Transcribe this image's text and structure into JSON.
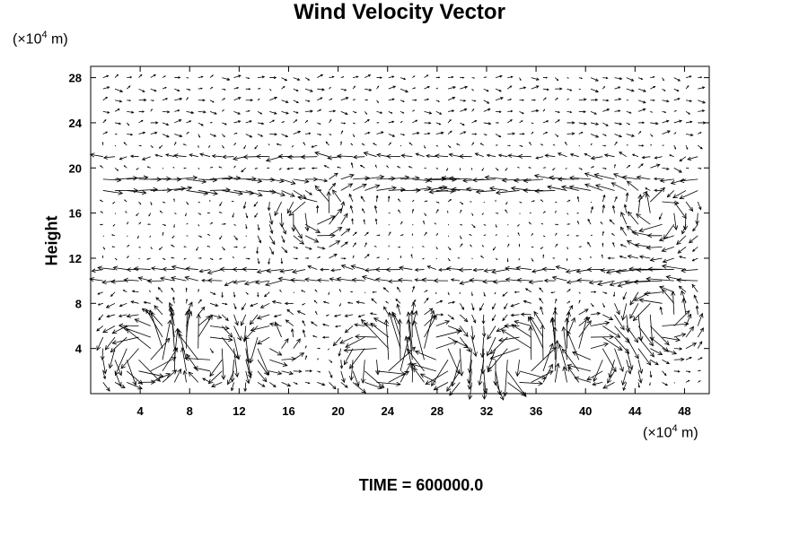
{
  "chart_data": {
    "type": "vector_field",
    "title": "Wind Velocity Vector",
    "ylabel": "Height",
    "y_unit_prefix": "(×10",
    "y_unit_exp": "4",
    "y_unit_suffix": " m)",
    "x_unit_prefix": "(×10",
    "x_unit_exp": "4",
    "x_unit_suffix": " m)",
    "xlim": [
      0,
      50
    ],
    "ylim": [
      0,
      29
    ],
    "xticks": [
      4,
      8,
      12,
      16,
      20,
      24,
      28,
      32,
      36,
      40,
      44,
      48
    ],
    "yticks": [
      4,
      8,
      12,
      16,
      20,
      24,
      28
    ],
    "grid": false,
    "vortices": [
      {
        "x": 4.5,
        "y": 3.5,
        "strength": 1.0
      },
      {
        "x": 9.5,
        "y": 4.0,
        "strength": -0.8
      },
      {
        "x": 14.5,
        "y": 4.5,
        "strength": 0.6
      },
      {
        "x": 23.5,
        "y": 3.0,
        "strength": 1.0
      },
      {
        "x": 28.0,
        "y": 3.5,
        "strength": -0.9
      },
      {
        "x": 35.0,
        "y": 3.0,
        "strength": 1.0
      },
      {
        "x": 40.5,
        "y": 3.5,
        "strength": -0.8
      },
      {
        "x": 46.0,
        "y": 7.0,
        "strength": 0.7
      },
      {
        "x": 18.0,
        "y": 16.0,
        "strength": 0.6
      },
      {
        "x": 46.0,
        "y": 16.0,
        "strength": -0.6
      }
    ]
  },
  "footer": {
    "time_label": "TIME = 600000.0"
  }
}
